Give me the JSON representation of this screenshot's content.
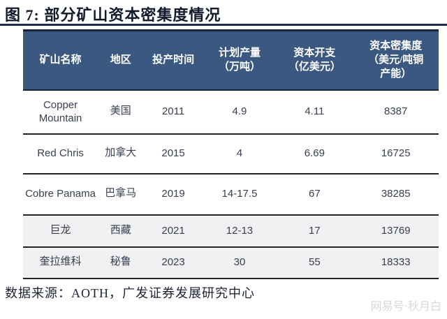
{
  "figure": {
    "title": "图 7: 部分矿山资本密集度情况",
    "source": "数据来源：AOTH，广发证券发展研究中心",
    "watermark": "网易号·秋月白"
  },
  "colors": {
    "header_bg": "#3a5880",
    "header_text": "#ffffff",
    "title_rule": "#1b2b4d",
    "row_separator": "#232323",
    "shaded_row_bg": "#f1f1f4",
    "body_text": "#39404f",
    "watermark_text": "#d8d8d8"
  },
  "table": {
    "headers": [
      {
        "lines": [
          "矿山名称"
        ]
      },
      {
        "lines": [
          "地区"
        ]
      },
      {
        "lines": [
          "投产时间"
        ]
      },
      {
        "lines": [
          "计划产量",
          "（万吨）"
        ]
      },
      {
        "lines": [
          "资本开支",
          "（亿美元）"
        ]
      },
      {
        "lines": [
          "资本密集度",
          "（美元/吨铜",
          "产能）"
        ]
      }
    ],
    "rows": [
      {
        "name": "Copper Mountain",
        "region": "美国",
        "year": "2011",
        "output": "4.9",
        "capex": "4.11",
        "intensity": "8387"
      },
      {
        "name": "Red Chris",
        "region": "加拿大",
        "year": "2015",
        "output": "4",
        "capex": "6.69",
        "intensity": "16725"
      },
      {
        "name": "Cobre Panama",
        "region": "巴拿马",
        "year": "2019",
        "output": "14-17.5",
        "capex": "67",
        "intensity": "38285"
      },
      {
        "name": "巨龙",
        "region": "西藏",
        "year": "2021",
        "output": "12-13",
        "capex": "17",
        "intensity": "13769"
      },
      {
        "name": "奎拉维科",
        "region": "秘鲁",
        "year": "2023",
        "output": "30",
        "capex": "55",
        "intensity": "18333"
      }
    ]
  },
  "chart_data": {
    "type": "table",
    "title": "图 7: 部分矿山资本密集度情况",
    "columns": [
      "矿山名称",
      "地区",
      "投产时间",
      "计划产量（万吨）",
      "资本开支（亿美元）",
      "资本密集度（美元/吨铜产能）"
    ],
    "rows": [
      [
        "Copper Mountain",
        "美国",
        "2011",
        "4.9",
        "4.11",
        "8387"
      ],
      [
        "Red Chris",
        "加拿大",
        "2015",
        "4",
        "6.69",
        "16725"
      ],
      [
        "Cobre Panama",
        "巴拿马",
        "2019",
        "14-17.5",
        "67",
        "38285"
      ],
      [
        "巨龙",
        "西藏",
        "2021",
        "12-13",
        "17",
        "13769"
      ],
      [
        "奎拉维科",
        "秘鲁",
        "2023",
        "30",
        "55",
        "18333"
      ]
    ],
    "source": "AOTH，广发证券发展研究中心"
  }
}
